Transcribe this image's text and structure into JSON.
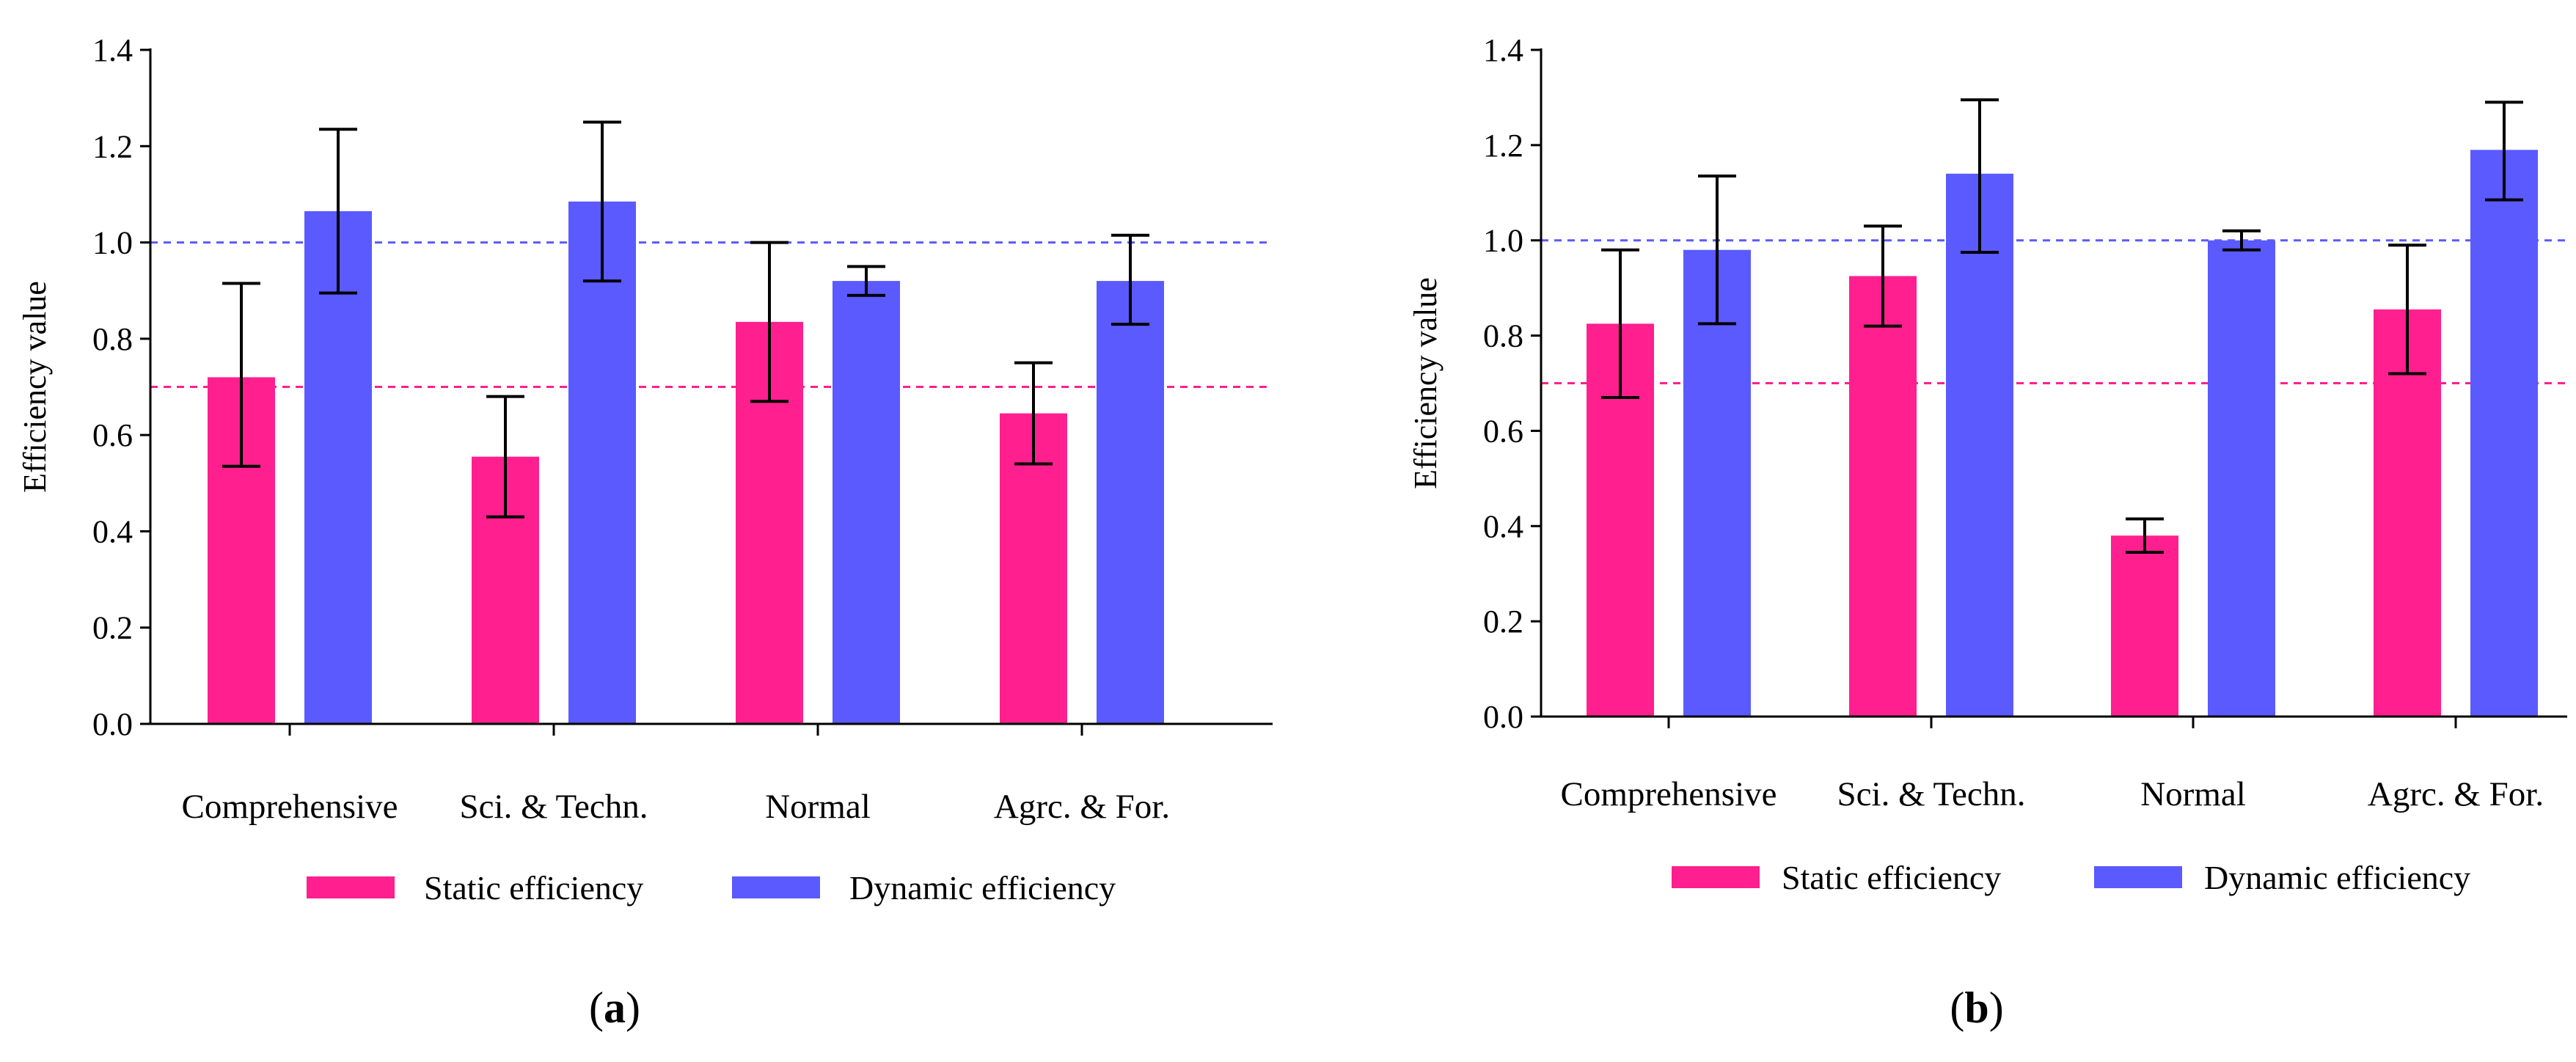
{
  "chart_data": [
    {
      "type": "bar",
      "panel_label": "a",
      "categories": [
        "Comprehensive",
        "Sci. & Techn.",
        "Normal",
        "Agrc. & For."
      ],
      "ylabel": "Efficiency value",
      "xlabel": "",
      "ylim": [
        0,
        1.4
      ],
      "yticks": [
        "0.0",
        "0.2",
        "0.4",
        "0.6",
        "0.8",
        "1.0",
        "1.2",
        "1.4"
      ],
      "legend_position": "bottom",
      "series": [
        {
          "name": "Static efficiency",
          "color": "#ff1f8f",
          "values": [
            0.72,
            0.555,
            0.835,
            0.645
          ],
          "err_low": [
            0.535,
            0.43,
            0.67,
            0.54
          ],
          "err_high": [
            0.915,
            0.68,
            1.0,
            0.75
          ]
        },
        {
          "name": "Dynamic efficiency",
          "color": "#5a5aff",
          "values": [
            1.065,
            1.085,
            0.92,
            0.92
          ],
          "err_low": [
            0.895,
            0.92,
            0.89,
            0.83
          ],
          "err_high": [
            1.235,
            1.25,
            0.95,
            1.015
          ]
        }
      ],
      "reference_lines": [
        {
          "value": 1.0,
          "color": "#5a5aff"
        },
        {
          "value": 0.7,
          "color": "#ff1f8f"
        }
      ]
    },
    {
      "type": "bar",
      "panel_label": "b",
      "categories": [
        "Comprehensive",
        "Sci. & Techn.",
        "Normal",
        "Agrc. & For."
      ],
      "ylabel": "Efficiency value",
      "xlabel": "",
      "ylim": [
        0,
        1.4
      ],
      "yticks": [
        "0.0",
        "0.2",
        "0.4",
        "0.6",
        "0.8",
        "1.0",
        "1.2",
        "1.4"
      ],
      "legend_position": "bottom",
      "series": [
        {
          "name": "Static efficiency",
          "color": "#ff1f8f",
          "values": [
            0.825,
            0.925,
            0.38,
            0.855
          ],
          "err_low": [
            0.67,
            0.82,
            0.345,
            0.72
          ],
          "err_high": [
            0.98,
            1.03,
            0.415,
            0.99
          ]
        },
        {
          "name": "Dynamic efficiency",
          "color": "#5a5aff",
          "values": [
            0.98,
            1.14,
            1.0,
            1.19
          ],
          "err_low": [
            0.825,
            0.975,
            0.98,
            1.085
          ],
          "err_high": [
            1.135,
            1.295,
            1.02,
            1.29
          ]
        }
      ],
      "reference_lines": [
        {
          "value": 1.0,
          "color": "#5a5aff"
        },
        {
          "value": 0.7,
          "color": "#ff1f8f"
        }
      ]
    }
  ]
}
